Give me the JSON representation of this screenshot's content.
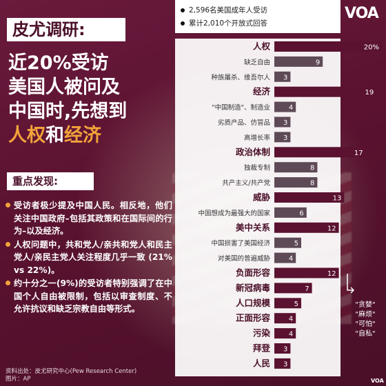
{
  "left": {
    "title": "皮尤调研:",
    "headline_line1": "近20%受访",
    "headline_line2": "美国人被问及",
    "headline_line3": "中国时,先想到",
    "headline_accent1": "人权",
    "headline_mid": "和",
    "headline_accent2": "经济",
    "findings_title": "重点发现:",
    "findings": [
      "受访者极少提及中国人民。相反地，他们关注中国政府–包括其政策和在国际间的行为–以及经济。",
      "人权问题中，共和党人/亲共和党人和民主党人/亲民主党人关注程度几乎一致 (21% vs 22%)。",
      "约十分之一(9%)的受访者特别强调了在中国个人自由被限制，包括以审查制度、不允许抗议和缺乏宗教自由等形式。"
    ],
    "source_line1": "资料出处：皮尤研究中心(Pew Research Center)",
    "source_line2": "图片：AP"
  },
  "legend": {
    "item1": "2,596名美国成年人受访",
    "item2": "累计2,010个开放式回答"
  },
  "logo": "VOA",
  "logo_small": "VOA",
  "side_note": [
    "\"贪婪\"",
    "\"麻烦\"",
    "\"可怕\"",
    "\"自私\""
  ],
  "colors": {
    "bar": "#5a1230",
    "accent": "#f2a33a",
    "background": "#5a1230"
  },
  "chart_data": {
    "type": "bar",
    "orientation": "horizontal",
    "categories": [
      "人权",
      "缺乏自由",
      "种族屠杀、维吾尔人",
      "经济",
      "\"中国制造\"、制造业",
      "劣质产品、仿冒品",
      "高增长率",
      "政治体制",
      "独裁专制",
      "共产主义/共产党",
      "威胁",
      "中国想成为最强大的国家",
      "美中关系",
      "中国损害了美国经济",
      "对美国的普遍威胁",
      "负面形容",
      "新冠病毒",
      "人口规模",
      "正面形容",
      "污染",
      "拜登",
      "人民"
    ],
    "values": [
      20,
      9,
      3,
      19,
      4,
      3,
      3,
      17,
      8,
      8,
      13,
      6,
      12,
      5,
      4,
      12,
      7,
      5,
      4,
      4,
      3,
      3
    ],
    "value_labels": [
      "20%",
      "9",
      "3",
      "19",
      "4",
      "3",
      "3",
      "17",
      "8",
      "8",
      "13",
      "6",
      "12",
      "5",
      "4",
      "12",
      "7",
      "5",
      "4",
      "4",
      "3",
      "3"
    ],
    "main_category": [
      true,
      false,
      false,
      true,
      false,
      false,
      false,
      true,
      false,
      false,
      true,
      false,
      true,
      false,
      false,
      true,
      true,
      true,
      true,
      true,
      true,
      true
    ],
    "xlim": [
      0,
      20
    ]
  }
}
